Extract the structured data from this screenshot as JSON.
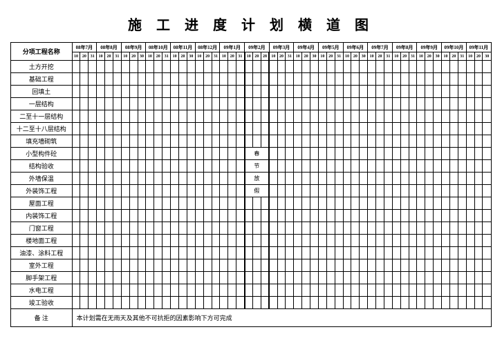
{
  "title": "施 工 进 度 计 划 横 道 图",
  "header_label": "分项工程名称",
  "months": [
    {
      "label": "08年7月",
      "days": [
        "10",
        "20",
        "31"
      ]
    },
    {
      "label": "08年8月",
      "days": [
        "10",
        "20",
        "31"
      ]
    },
    {
      "label": "08年9月",
      "days": [
        "10",
        "20",
        "30"
      ]
    },
    {
      "label": "08年10月",
      "days": [
        "10",
        "20",
        "31"
      ]
    },
    {
      "label": "08年11月",
      "days": [
        "10",
        "20",
        "30"
      ]
    },
    {
      "label": "08年12月",
      "days": [
        "10",
        "20",
        "31"
      ]
    },
    {
      "label": "09年1月",
      "days": [
        "10",
        "20",
        "31"
      ]
    },
    {
      "label": "09年2月",
      "days": [
        "10",
        "20",
        "28"
      ]
    },
    {
      "label": "09年3月",
      "days": [
        "10",
        "20",
        "31"
      ]
    },
    {
      "label": "09年4月",
      "days": [
        "10",
        "20",
        "30"
      ]
    },
    {
      "label": "09年5月",
      "days": [
        "10",
        "20",
        "31"
      ]
    },
    {
      "label": "09年6月",
      "days": [
        "10",
        "20",
        "30"
      ]
    },
    {
      "label": "09年7月",
      "days": [
        "10",
        "20",
        "31"
      ]
    },
    {
      "label": "09年8月",
      "days": [
        "10",
        "20",
        "31"
      ]
    },
    {
      "label": "09年9月",
      "days": [
        "10",
        "20",
        "30"
      ]
    },
    {
      "label": "09年10月",
      "days": [
        "10",
        "20",
        "31"
      ]
    },
    {
      "label": "09年11月",
      "days": [
        "10",
        "20",
        "30"
      ]
    }
  ],
  "rows": [
    "土方开挖",
    "基础工程",
    "回填土",
    "一层结构",
    "二至十一层结构",
    "十二至十八层结构",
    "填充墙砌筑",
    "小型构件砼",
    "结构验收",
    "外墙保温",
    "外装饰工程",
    "屋面工程",
    "内装饰工程",
    "门窗工程",
    "楼地面工程",
    "油漆、涂料工程",
    "室外工程",
    "脚手架工程",
    "水电工程",
    "竣工验收"
  ],
  "holiday_text": [
    "春",
    "节",
    "放",
    "假"
  ],
  "holiday_month_index": 7,
  "note_label": "备 注",
  "note_text": "本计划需在无雨天及其他不可抗拒的因素影响下方可完成",
  "colors": {
    "background": "#ffffff",
    "border": "#000000",
    "text": "#000000"
  }
}
